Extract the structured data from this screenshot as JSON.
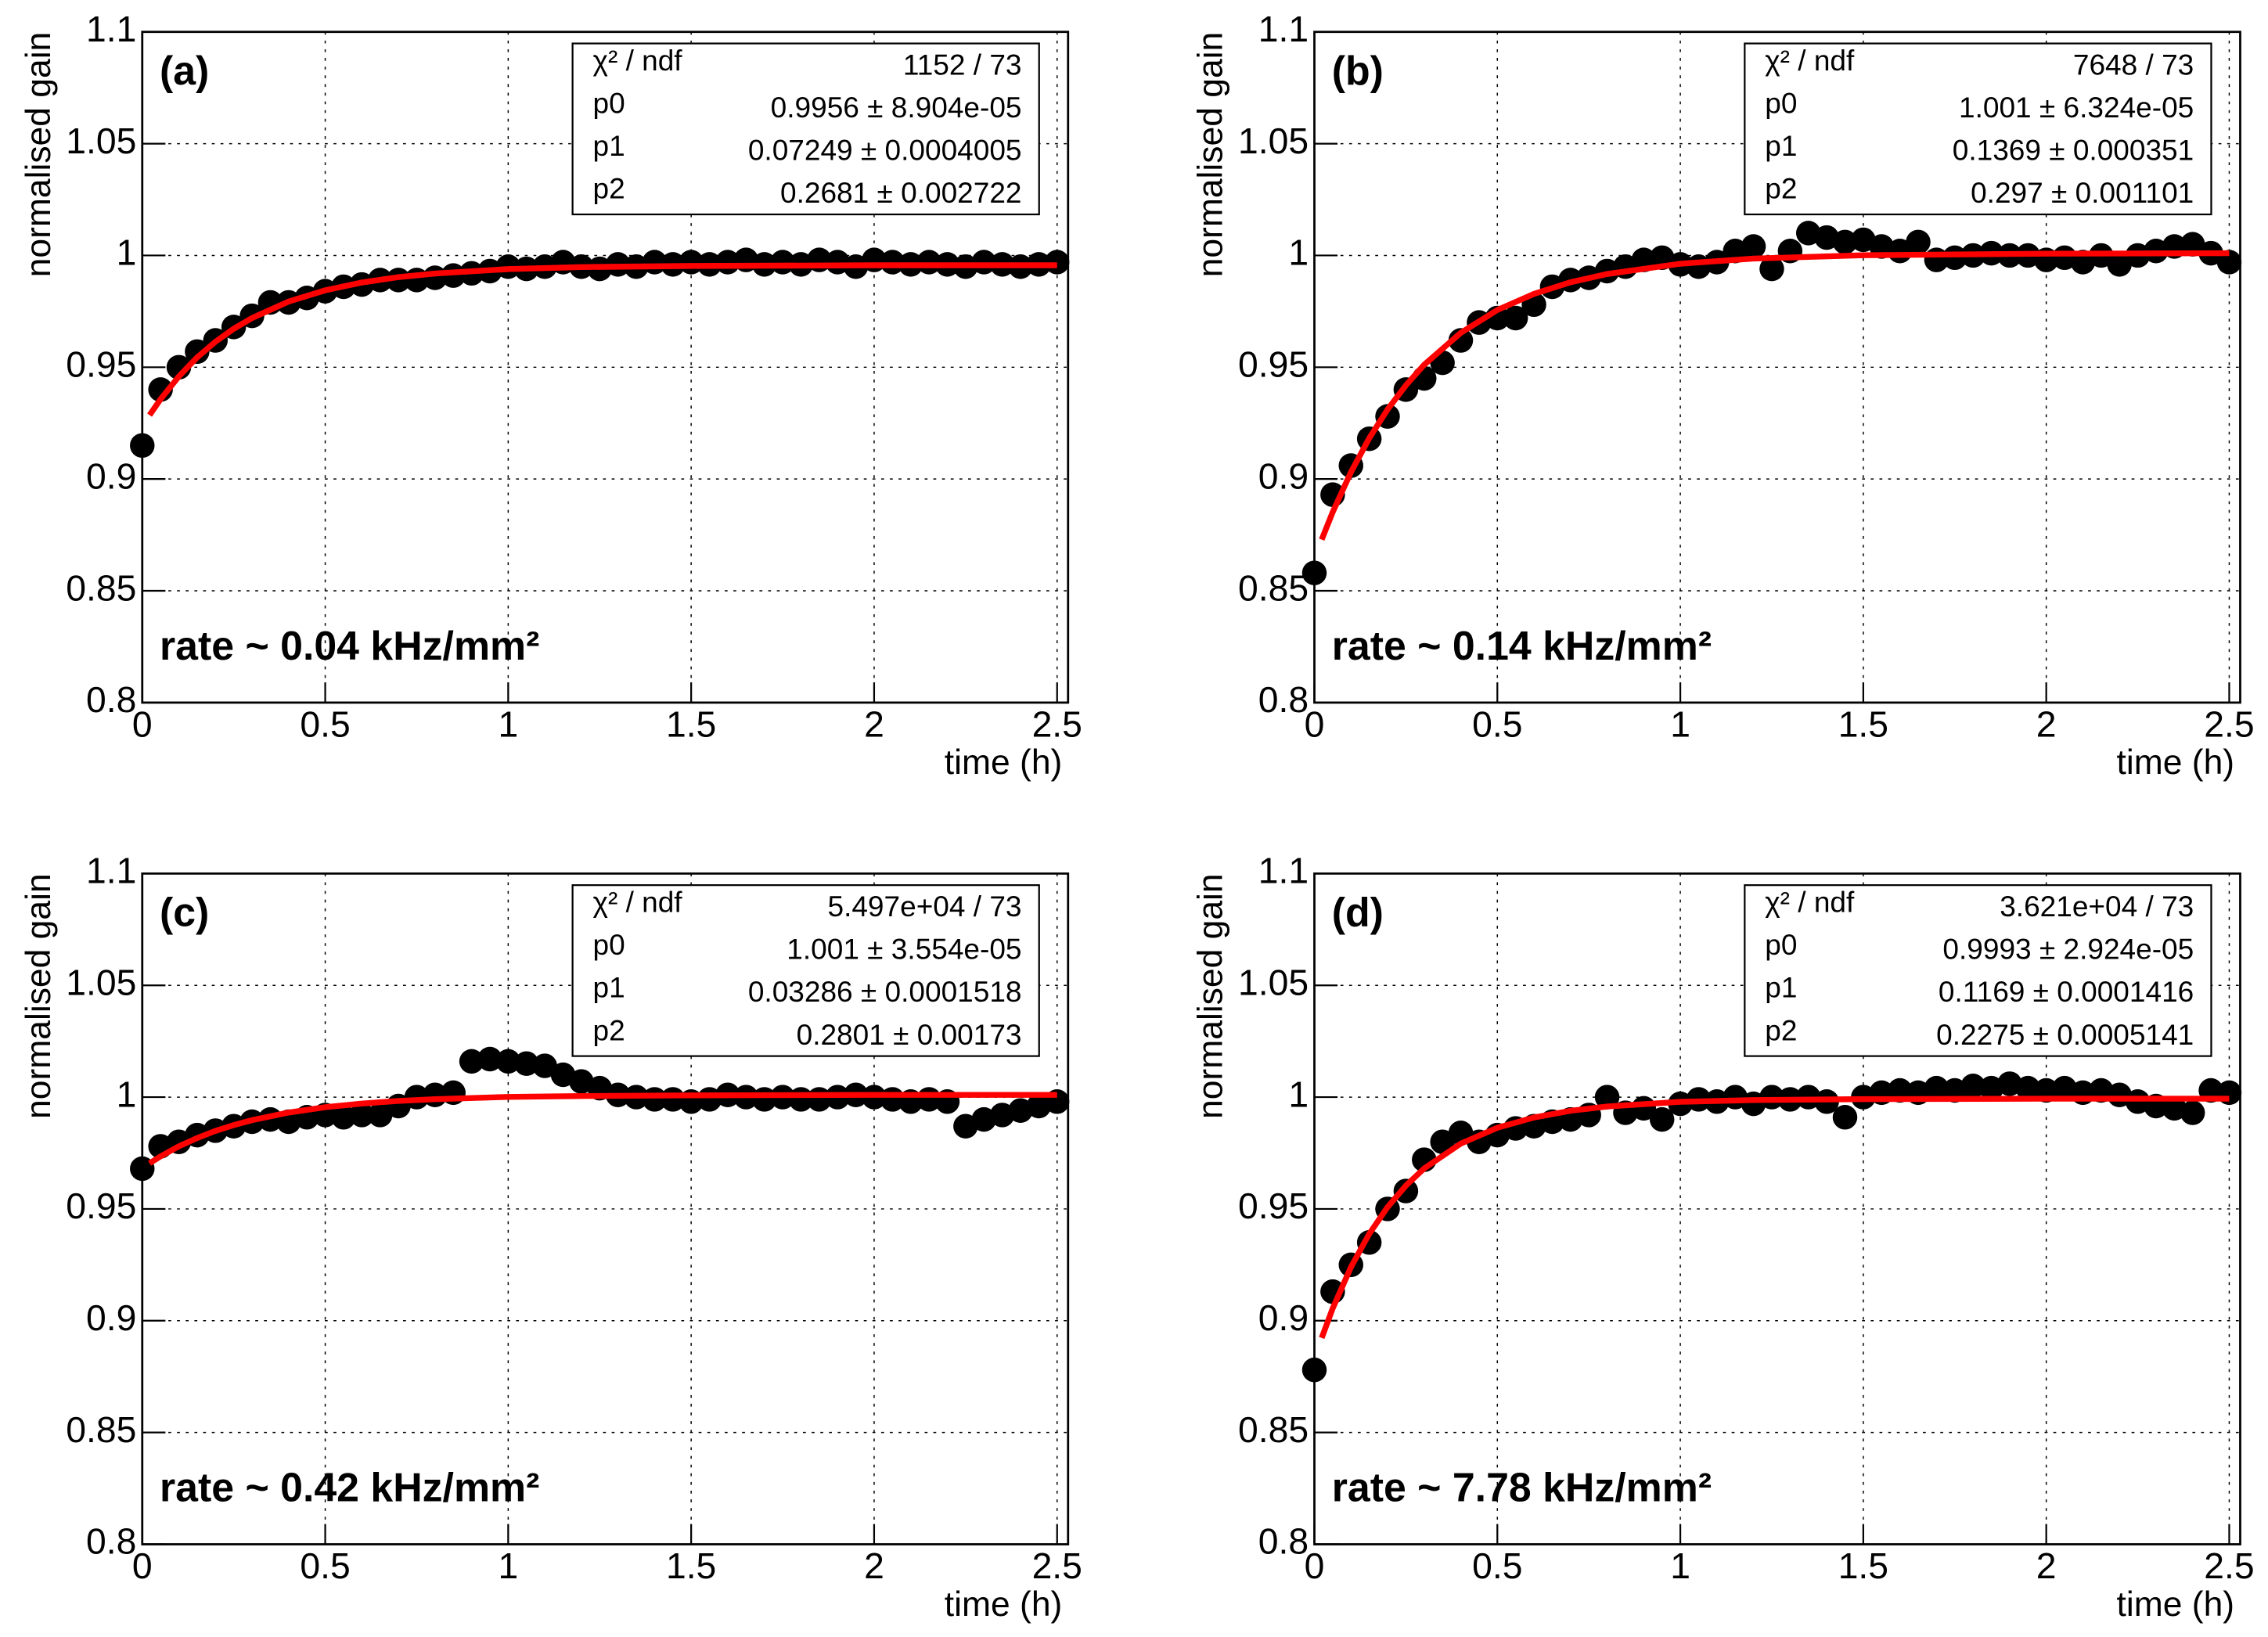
{
  "chart_data": [
    {
      "type": "scatter",
      "label": "(a)",
      "annotation": "rate ~ 0.04 kHz/mm²",
      "xlabel": "time (h)",
      "ylabel": "normalised gain",
      "xlim": [
        0,
        2.53
      ],
      "ylim": [
        0.8,
        1.1
      ],
      "xticks": [
        0,
        0.5,
        1,
        1.5,
        2,
        2.5
      ],
      "yticks": [
        0.8,
        0.85,
        0.9,
        0.95,
        1,
        1.05,
        1.1
      ],
      "grid": true,
      "color": "#000000",
      "x": [
        0,
        0.05,
        0.1,
        0.15,
        0.2,
        0.25,
        0.3,
        0.35,
        0.4,
        0.45,
        0.5,
        0.55,
        0.6,
        0.65,
        0.7,
        0.75,
        0.8,
        0.85,
        0.9,
        0.95,
        1,
        1.05,
        1.1,
        1.15,
        1.2,
        1.25,
        1.3,
        1.35,
        1.4,
        1.45,
        1.5,
        1.55,
        1.6,
        1.65,
        1.7,
        1.75,
        1.8,
        1.85,
        1.9,
        1.95,
        2,
        2.05,
        2.1,
        2.15,
        2.2,
        2.25,
        2.3,
        2.35,
        2.4,
        2.45,
        2.5
      ],
      "values": [
        0.915,
        0.94,
        0.95,
        0.957,
        0.962,
        0.968,
        0.973,
        0.979,
        0.979,
        0.981,
        0.984,
        0.986,
        0.987,
        0.989,
        0.989,
        0.989,
        0.99,
        0.991,
        0.992,
        0.993,
        0.995,
        0.994,
        0.995,
        0.997,
        0.995,
        0.994,
        0.996,
        0.995,
        0.997,
        0.996,
        0.997,
        0.996,
        0.997,
        0.998,
        0.996,
        0.997,
        0.996,
        0.998,
        0.997,
        0.995,
        0.998,
        0.997,
        0.996,
        0.997,
        0.996,
        0.995,
        0.997,
        0.996,
        0.995,
        0.996,
        0.997
      ],
      "fit": {
        "color": "#ff0000",
        "x": [
          0.02,
          0.05,
          0.1,
          0.15,
          0.2,
          0.25,
          0.3,
          0.4,
          0.5,
          0.6,
          0.7,
          0.8,
          1,
          1.2,
          1.5,
          2,
          2.5
        ],
        "values": [
          0.9286,
          0.9357,
          0.9459,
          0.9544,
          0.9614,
          0.9672,
          0.972,
          0.9794,
          0.9844,
          0.9879,
          0.9903,
          0.9919,
          0.9939,
          0.9948,
          0.9953,
          0.9956,
          0.9956
        ]
      },
      "stats": [
        [
          "χ² / ndf",
          "1152 / 73"
        ],
        [
          "p0",
          "0.9956 ± 8.904e-05"
        ],
        [
          "p1",
          "0.07249 ± 0.0004005"
        ],
        [
          "p2",
          "0.2681 ± 0.002722"
        ]
      ]
    },
    {
      "type": "scatter",
      "label": "(b)",
      "annotation": "rate ~ 0.14 kHz/mm²",
      "xlabel": "time (h)",
      "ylabel": "normalised gain",
      "xlim": [
        0,
        2.53
      ],
      "ylim": [
        0.8,
        1.1
      ],
      "xticks": [
        0,
        0.5,
        1,
        1.5,
        2,
        2.5
      ],
      "yticks": [
        0.8,
        0.85,
        0.9,
        0.95,
        1,
        1.05,
        1.1
      ],
      "grid": true,
      "color": "#000000",
      "x": [
        0,
        0.05,
        0.1,
        0.15,
        0.2,
        0.25,
        0.3,
        0.35,
        0.4,
        0.45,
        0.5,
        0.55,
        0.6,
        0.65,
        0.7,
        0.75,
        0.8,
        0.85,
        0.9,
        0.95,
        1,
        1.05,
        1.1,
        1.15,
        1.2,
        1.25,
        1.3,
        1.35,
        1.4,
        1.45,
        1.5,
        1.55,
        1.6,
        1.65,
        1.7,
        1.75,
        1.8,
        1.85,
        1.9,
        1.95,
        2,
        2.05,
        2.1,
        2.15,
        2.2,
        2.25,
        2.3,
        2.35,
        2.4,
        2.45,
        2.5
      ],
      "values": [
        0.858,
        0.893,
        0.906,
        0.918,
        0.928,
        0.94,
        0.945,
        0.952,
        0.962,
        0.97,
        0.972,
        0.972,
        0.978,
        0.986,
        0.989,
        0.99,
        0.993,
        0.995,
        0.998,
        0.999,
        0.996,
        0.995,
        0.997,
        1.002,
        1.004,
        0.994,
        1.002,
        1.01,
        1.008,
        1.006,
        1.007,
        1.004,
        1.002,
        1.006,
        0.998,
        0.999,
        1.0,
        1.001,
        1.0,
        1.0,
        0.998,
        0.999,
        0.997,
        1.0,
        0.996,
        1.0,
        1.002,
        1.004,
        1.005,
        1.001,
        0.997
      ],
      "fit": {
        "color": "#ff0000",
        "x": [
          0.02,
          0.05,
          0.1,
          0.15,
          0.2,
          0.25,
          0.3,
          0.4,
          0.5,
          0.6,
          0.7,
          0.8,
          1,
          1.2,
          1.5,
          2,
          2.5
        ],
        "values": [
          0.8729,
          0.8852,
          0.9031,
          0.9183,
          0.9311,
          0.9419,
          0.9511,
          0.9654,
          0.9756,
          0.9828,
          0.988,
          0.9917,
          0.9963,
          0.9986,
          1.0001,
          1.0008,
          1.001
        ]
      },
      "stats": [
        [
          "χ² / ndf",
          "7648 / 73"
        ],
        [
          "p0",
          "1.001 ± 6.324e-05"
        ],
        [
          "p1",
          "0.1369 ± 0.000351"
        ],
        [
          "p2",
          "0.297 ± 0.001101"
        ]
      ]
    },
    {
      "type": "scatter",
      "label": "(c)",
      "annotation": "rate ~ 0.42 kHz/mm²",
      "xlabel": "time (h)",
      "ylabel": "normalised gain",
      "xlim": [
        0,
        2.53
      ],
      "ylim": [
        0.8,
        1.1
      ],
      "xticks": [
        0,
        0.5,
        1,
        1.5,
        2,
        2.5
      ],
      "yticks": [
        0.8,
        0.85,
        0.9,
        0.95,
        1,
        1.05,
        1.1
      ],
      "grid": true,
      "color": "#000000",
      "x": [
        0,
        0.05,
        0.1,
        0.15,
        0.2,
        0.25,
        0.3,
        0.35,
        0.4,
        0.45,
        0.5,
        0.55,
        0.6,
        0.65,
        0.7,
        0.75,
        0.8,
        0.85,
        0.9,
        0.95,
        1,
        1.05,
        1.1,
        1.15,
        1.2,
        1.25,
        1.3,
        1.35,
        1.4,
        1.45,
        1.5,
        1.55,
        1.6,
        1.65,
        1.7,
        1.75,
        1.8,
        1.85,
        1.9,
        1.95,
        2,
        2.05,
        2.1,
        2.15,
        2.2,
        2.25,
        2.3,
        2.35,
        2.4,
        2.45,
        2.5
      ],
      "values": [
        0.968,
        0.978,
        0.98,
        0.983,
        0.985,
        0.987,
        0.989,
        0.99,
        0.989,
        0.991,
        0.992,
        0.991,
        0.992,
        0.992,
        0.996,
        1.0,
        1.001,
        1.002,
        1.016,
        1.017,
        1.016,
        1.015,
        1.014,
        1.01,
        1.007,
        1.004,
        1.001,
        1.0,
        0.999,
        0.999,
        0.998,
        0.999,
        1.001,
        1.0,
        0.999,
        1.0,
        0.999,
        0.999,
        1.0,
        1.001,
        1.0,
        0.999,
        0.998,
        0.999,
        0.998,
        0.987,
        0.99,
        0.992,
        0.994,
        0.996,
        0.998
      ],
      "fit": {
        "color": "#ff0000",
        "x": [
          0.02,
          0.05,
          0.1,
          0.15,
          0.2,
          0.25,
          0.3,
          0.4,
          0.5,
          0.6,
          0.7,
          0.8,
          1,
          1.2,
          1.5,
          2,
          2.5
        ],
        "values": [
          0.9704,
          0.9735,
          0.978,
          0.9817,
          0.9849,
          0.9875,
          0.9897,
          0.9931,
          0.9955,
          0.9971,
          0.9983,
          0.9991,
          1.0001,
          1.0005,
          1.0008,
          1.001,
          1.001
        ]
      },
      "stats": [
        [
          "χ² / ndf",
          "5.497e+04 / 73"
        ],
        [
          "p0",
          "1.001 ± 3.554e-05"
        ],
        [
          "p1",
          "0.03286 ± 0.0001518"
        ],
        [
          "p2",
          "0.2801 ± 0.00173"
        ]
      ]
    },
    {
      "type": "scatter",
      "label": "(d)",
      "annotation": "rate ~ 7.78 kHz/mm²",
      "xlabel": "time (h)",
      "ylabel": "normalised gain",
      "xlim": [
        0,
        2.53
      ],
      "ylim": [
        0.8,
        1.1
      ],
      "xticks": [
        0,
        0.5,
        1,
        1.5,
        2,
        2.5
      ],
      "yticks": [
        0.8,
        0.85,
        0.9,
        0.95,
        1,
        1.05,
        1.1
      ],
      "grid": true,
      "color": "#000000",
      "x": [
        0,
        0.05,
        0.1,
        0.15,
        0.2,
        0.25,
        0.3,
        0.35,
        0.4,
        0.45,
        0.5,
        0.55,
        0.6,
        0.65,
        0.7,
        0.75,
        0.8,
        0.85,
        0.9,
        0.95,
        1,
        1.05,
        1.1,
        1.15,
        1.2,
        1.25,
        1.3,
        1.35,
        1.4,
        1.45,
        1.5,
        1.55,
        1.6,
        1.65,
        1.7,
        1.75,
        1.8,
        1.85,
        1.9,
        1.95,
        2,
        2.05,
        2.1,
        2.15,
        2.2,
        2.25,
        2.3,
        2.35,
        2.4,
        2.45,
        2.5
      ],
      "values": [
        0.878,
        0.913,
        0.925,
        0.935,
        0.95,
        0.958,
        0.972,
        0.98,
        0.984,
        0.98,
        0.983,
        0.986,
        0.987,
        0.989,
        0.99,
        0.992,
        1.0,
        0.993,
        0.995,
        0.99,
        0.997,
        0.999,
        0.998,
        1.0,
        0.997,
        1.0,
        0.999,
        1.0,
        0.998,
        0.991,
        1.0,
        1.002,
        1.003,
        1.002,
        1.004,
        1.003,
        1.005,
        1.004,
        1.006,
        1.004,
        1.003,
        1.004,
        1.002,
        1.003,
        1.001,
        0.998,
        0.996,
        0.995,
        0.993,
        1.003,
        1.002
      ],
      "fit": {
        "color": "#ff0000",
        "x": [
          0.02,
          0.05,
          0.1,
          0.15,
          0.2,
          0.25,
          0.3,
          0.4,
          0.5,
          0.6,
          0.7,
          0.8,
          1,
          1.2,
          1.5,
          2,
          2.5
        ],
        "values": [
          0.8923,
          0.9055,
          0.924,
          0.9389,
          0.9508,
          0.9604,
          0.9681,
          0.9792,
          0.9863,
          0.9909,
          0.9939,
          0.9958,
          0.9979,
          0.9987,
          0.9991,
          0.9993,
          0.9993
        ]
      },
      "stats": [
        [
          "χ² / ndf",
          "3.621e+04 / 73"
        ],
        [
          "p0",
          "0.9993 ± 2.924e-05"
        ],
        [
          "p1",
          "0.1169 ± 0.0001416"
        ],
        [
          "p2",
          "0.2275 ± 0.0005141"
        ]
      ]
    }
  ]
}
